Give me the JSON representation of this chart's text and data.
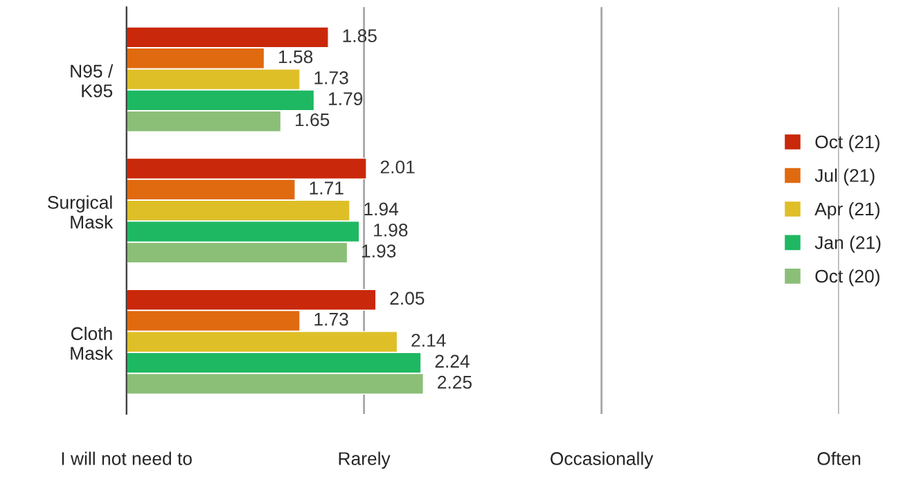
{
  "chart_data": {
    "type": "bar",
    "orientation": "horizontal",
    "categories": [
      "N95 /\nK95",
      "Surgical\nMask",
      "Cloth\nMask"
    ],
    "series": [
      {
        "name": "Oct (21)",
        "color": "#c9280a",
        "values": [
          1.85,
          2.01,
          2.05
        ]
      },
      {
        "name": "Jul (21)",
        "color": "#e06a10",
        "values": [
          1.58,
          1.71,
          1.73
        ]
      },
      {
        "name": "Apr (21)",
        "color": "#dfbf28",
        "values": [
          1.73,
          1.94,
          2.14
        ]
      },
      {
        "name": "Jan (21)",
        "color": "#1fb862",
        "values": [
          1.79,
          1.98,
          2.24
        ]
      },
      {
        "name": "Oct (20)",
        "color": "#8bbf78",
        "values": [
          1.65,
          1.93,
          2.25
        ]
      }
    ],
    "xlim": [
      1,
      4
    ],
    "xticks": [
      {
        "value": 1,
        "label": null
      },
      {
        "value": 2,
        "label": null
      },
      {
        "value": 3,
        "label": null
      },
      {
        "value": 4,
        "label": null
      }
    ],
    "annotations": [
      "I will not need to",
      "Rarely",
      "Occasionally",
      "Often"
    ],
    "grid": "x",
    "legend": "right",
    "data_labels": true
  }
}
